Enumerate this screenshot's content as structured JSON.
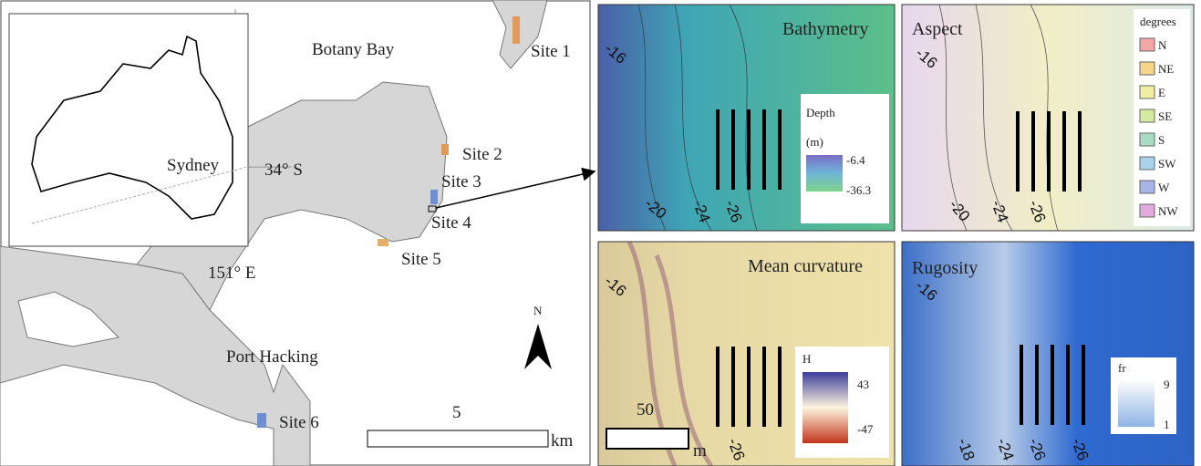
{
  "map": {
    "place_labels": [
      "Botany Bay",
      "Sydney",
      "34° S",
      "151° E",
      "Port Hacking"
    ],
    "sites": [
      "Site 1",
      "Site 2",
      "Site 3",
      "Site 4",
      "Site 5",
      "Site 6"
    ],
    "north_arrow": "N",
    "scale_bar": {
      "value": "5",
      "unit": "km"
    }
  },
  "panels": [
    {
      "title": "Bathymetry",
      "contour_labels": [
        "-16",
        "-20",
        "-24",
        "-26"
      ],
      "legend": {
        "title": "Depth",
        "unit": "(m)",
        "labels": [
          "-6.4",
          "-36.3"
        ]
      }
    },
    {
      "title": "Aspect",
      "contour_labels": [
        "-16",
        "-20",
        "-24",
        "-26"
      ],
      "legend": {
        "title": "degrees",
        "labels": [
          "N",
          "NE",
          "E",
          "SE",
          "S",
          "SW",
          "W",
          "NW"
        ]
      }
    },
    {
      "title": "Mean curvature",
      "contour_labels": [
        "-16",
        "-26"
      ],
      "scale_bar": {
        "value": "50",
        "unit": "m"
      },
      "legend": {
        "title": "H",
        "labels": [
          "43",
          "-47"
        ]
      }
    },
    {
      "title": "Rugosity",
      "contour_labels": [
        "-16",
        "-18",
        "-24",
        "-26",
        "-26"
      ],
      "legend": {
        "title": "fr",
        "labels": [
          "9",
          "1"
        ]
      }
    }
  ]
}
